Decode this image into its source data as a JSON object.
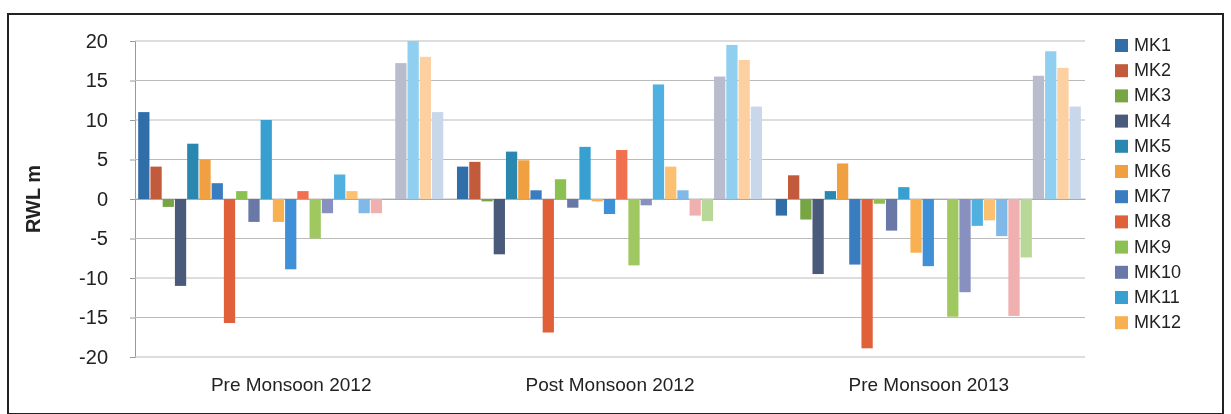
{
  "chart_data": {
    "type": "bar",
    "ylabel": "RWL m",
    "categories": [
      "Pre Monsoon 2012",
      "Post Monsoon 2012",
      "Pre Monsoon 2013"
    ],
    "ylim": [
      -20,
      20
    ],
    "yticks": [
      -20,
      -15,
      -10,
      -5,
      0,
      5,
      10,
      15,
      20
    ],
    "grid": "y",
    "legend": "right",
    "series": [
      {
        "name": "MK1",
        "color": "#2f6ea8",
        "values": [
          11,
          4.1,
          -2.1
        ]
      },
      {
        "name": "MK2",
        "color": "#c25a3c",
        "values": [
          4.1,
          4.7,
          3
        ]
      },
      {
        "name": "MK3",
        "color": "#77a543",
        "values": [
          -1,
          -0.3,
          -2.6
        ]
      },
      {
        "name": "MK4",
        "color": "#4a5a7a",
        "values": [
          -11,
          -7,
          -9.5
        ]
      },
      {
        "name": "MK5",
        "color": "#2a88b0",
        "values": [
          7,
          6,
          1
        ]
      },
      {
        "name": "MK6",
        "color": "#f0a040",
        "values": [
          5,
          4.9,
          4.5
        ]
      },
      {
        "name": "MK7",
        "color": "#3a7cc0",
        "values": [
          2,
          1.1,
          -8.3
        ]
      },
      {
        "name": "MK8",
        "color": "#e0603a",
        "values": [
          -15.7,
          -16.9,
          -18.9
        ]
      },
      {
        "name": "MK9",
        "color": "#8cc050",
        "values": [
          1,
          2.5,
          -0.6
        ]
      },
      {
        "name": "MK10",
        "color": "#6a78a8",
        "values": [
          -2.9,
          -1.1,
          -4
        ]
      },
      {
        "name": "MK11",
        "color": "#38a0d0",
        "values": [
          10,
          6.6,
          1.5
        ]
      },
      {
        "name": "MK12",
        "color": "#f8b050",
        "values": [
          -2.9,
          -0.3,
          -6.8
        ]
      },
      {
        "color": "#4090d8",
        "values": [
          -8.9,
          -1.9,
          -8.5
        ]
      },
      {
        "color": "#f07050",
        "values": [
          1,
          6.2,
          null
        ]
      },
      {
        "color": "#a0c860",
        "values": [
          -5,
          -8.4,
          -14.9
        ]
      },
      {
        "color": "#8890c0",
        "values": [
          -1.8,
          -0.8,
          -11.8
        ]
      },
      {
        "color": "#50b0e0",
        "values": [
          3.1,
          14.5,
          -3.4
        ]
      },
      {
        "color": "#fbc070",
        "values": [
          1,
          4.1,
          -2.7
        ]
      },
      {
        "color": "#80b8e8",
        "values": [
          -1.8,
          1.1,
          -4.7
        ]
      },
      {
        "color": "#f0b0b0",
        "values": [
          -1.8,
          -2.1,
          -14.8
        ]
      },
      {
        "color": "#b8d898",
        "values": [
          null,
          -2.8,
          -7.4
        ]
      },
      {
        "color": "#b8bccc",
        "values": [
          17.2,
          15.5,
          15.6
        ]
      },
      {
        "color": "#90cff0",
        "values": [
          20,
          19.5,
          18.7
        ]
      },
      {
        "color": "#fcd0a0",
        "values": [
          18,
          17.6,
          16.6
        ]
      },
      {
        "color": "#c8d8ea",
        "values": [
          11,
          11.7,
          11.7
        ]
      }
    ]
  }
}
